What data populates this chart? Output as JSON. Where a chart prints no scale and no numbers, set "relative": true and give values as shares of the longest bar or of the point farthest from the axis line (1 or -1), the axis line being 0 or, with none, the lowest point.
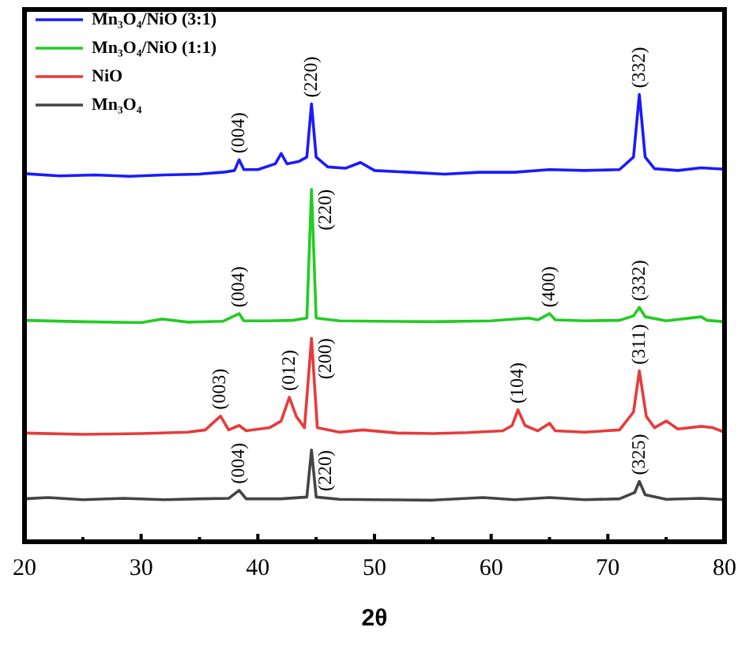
{
  "chart_data": {
    "type": "line",
    "xlabel": "2θ",
    "relative": true,
    "tick_labels": "x",
    "legend": "top left",
    "grid": false,
    "xlim": [
      20,
      80
    ],
    "xticks": [
      20,
      {
        "value": 25,
        "label": null
      },
      30,
      {
        "value": 35,
        "label": null
      },
      40,
      {
        "value": 45,
        "label": null
      },
      50,
      {
        "value": 55,
        "label": null
      },
      60,
      {
        "value": 65,
        "label": null
      },
      70,
      {
        "value": 75,
        "label": null
      },
      80
    ],
    "series": [
      {
        "name": "Mn₃O₄/NiO (3:1)",
        "color": "#1a1aff",
        "x": [
          20,
          23,
          26,
          29,
          32,
          35,
          37,
          38,
          38.4,
          38.8,
          40,
          41.5,
          42,
          42.5,
          43.5,
          44.2,
          44.6,
          45,
          46,
          47.5,
          48.8,
          50,
          53,
          56,
          59,
          62,
          65,
          68,
          71,
          72.2,
          72.7,
          73.2,
          74,
          76,
          78,
          80
        ],
        "values": [
          0.823,
          0.818,
          0.82,
          0.817,
          0.82,
          0.822,
          0.826,
          0.83,
          0.854,
          0.832,
          0.832,
          0.845,
          0.868,
          0.845,
          0.85,
          0.86,
          0.979,
          0.86,
          0.838,
          0.835,
          0.848,
          0.83,
          0.826,
          0.822,
          0.826,
          0.826,
          0.832,
          0.83,
          0.832,
          0.86,
          1.0,
          0.86,
          0.834,
          0.83,
          0.836,
          0.833
        ]
      },
      {
        "name": "Mn₃O₄/NiO (1:1)",
        "color": "#22cc22",
        "x": [
          20,
          25,
          30,
          31.8,
          34,
          37,
          38.4,
          38.8,
          41,
          43,
          44.2,
          44.6,
          45,
          47,
          50,
          55,
          60,
          63.2,
          64,
          65,
          65.5,
          68,
          71,
          72.2,
          72.7,
          73.2,
          75,
          78,
          78.5,
          80
        ],
        "values": [
          0.495,
          0.492,
          0.49,
          0.498,
          0.491,
          0.493,
          0.51,
          0.494,
          0.494,
          0.495,
          0.5,
          0.788,
          0.5,
          0.494,
          0.493,
          0.492,
          0.494,
          0.5,
          0.496,
          0.51,
          0.496,
          0.494,
          0.495,
          0.505,
          0.524,
          0.503,
          0.494,
          0.503,
          0.495,
          0.492
        ]
      },
      {
        "name": "NiO",
        "color": "#e83a3a",
        "x": [
          20,
          25,
          30,
          34,
          35.5,
          36.8,
          37.5,
          38.4,
          39,
          41,
          42,
          42.7,
          43.3,
          44,
          44.6,
          45.1,
          47,
          49,
          52,
          55,
          58,
          61,
          61.8,
          62.3,
          62.9,
          64,
          65,
          65.5,
          68,
          71,
          72.2,
          72.7,
          73.3,
          74,
          75,
          76,
          78,
          79,
          80
        ],
        "values": [
          0.243,
          0.24,
          0.242,
          0.245,
          0.25,
          0.281,
          0.25,
          0.26,
          0.248,
          0.255,
          0.27,
          0.323,
          0.28,
          0.255,
          0.455,
          0.255,
          0.245,
          0.25,
          0.243,
          0.242,
          0.244,
          0.248,
          0.26,
          0.295,
          0.26,
          0.248,
          0.265,
          0.248,
          0.245,
          0.25,
          0.29,
          0.382,
          0.28,
          0.255,
          0.27,
          0.252,
          0.258,
          0.255,
          0.245
        ]
      },
      {
        "name": "Mn₃O₄",
        "color": "#444444",
        "x": [
          20,
          22,
          25,
          28.5,
          32,
          35,
          37.5,
          38.4,
          39,
          42,
          44.2,
          44.6,
          45,
          47,
          50,
          55,
          59.3,
          62,
          65,
          68,
          71,
          72.3,
          72.7,
          73.2,
          75,
          78,
          80
        ],
        "values": [
          0.096,
          0.099,
          0.094,
          0.097,
          0.094,
          0.096,
          0.097,
          0.115,
          0.096,
          0.096,
          0.1,
          0.205,
          0.1,
          0.095,
          0.094,
          0.093,
          0.099,
          0.094,
          0.099,
          0.094,
          0.096,
          0.11,
          0.135,
          0.105,
          0.095,
          0.097,
          0.094
        ]
      }
    ],
    "annotations": [
      {
        "text": "(004)",
        "x": 38.4,
        "y": 0.854
      },
      {
        "text": "(220)",
        "x": 44.6,
        "y": 0.979
      },
      {
        "text": "(332)",
        "x": 72.7,
        "y": 1.0
      },
      {
        "text": "(004)",
        "x": 38.4,
        "y": 0.51
      },
      {
        "text": "(220)",
        "x": 44.6,
        "y": 0.788
      },
      {
        "text": "(400)",
        "x": 65,
        "y": 0.51
      },
      {
        "text": "(332)",
        "x": 72.7,
        "y": 0.524
      },
      {
        "text": "(003)",
        "x": 36.8,
        "y": 0.281
      },
      {
        "text": "(012)",
        "x": 42.7,
        "y": 0.323
      },
      {
        "text": "(200)",
        "x": 44.6,
        "y": 0.455
      },
      {
        "text": "(104)",
        "x": 62.3,
        "y": 0.295
      },
      {
        "text": "(311)",
        "x": 72.7,
        "y": 0.382
      },
      {
        "text": "(004)",
        "x": 38.4,
        "y": 0.115
      },
      {
        "text": "(220)",
        "x": 44.6,
        "y": 0.205
      },
      {
        "text": "(325)",
        "x": 72.7,
        "y": 0.135
      }
    ]
  }
}
